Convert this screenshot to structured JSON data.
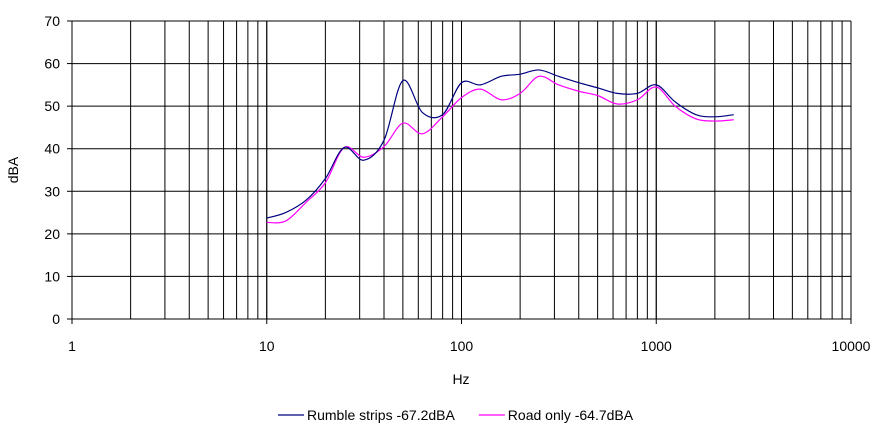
{
  "chart_data": {
    "type": "line",
    "xlabel": "Hz",
    "ylabel": "dBA",
    "x_scale": "log",
    "xlim": [
      1,
      10000
    ],
    "ylim": [
      0,
      70
    ],
    "x_ticks": [
      1,
      10,
      100,
      1000,
      10000
    ],
    "x_tick_labels": [
      "1",
      "10",
      "100",
      "1000",
      "10000"
    ],
    "y_ticks": [
      0,
      10,
      20,
      30,
      40,
      50,
      60,
      70
    ],
    "y_tick_labels": [
      "0",
      "10",
      "20",
      "30",
      "40",
      "50",
      "60",
      "70"
    ],
    "grid": true,
    "legend_position": "bottom-center",
    "series": [
      {
        "name": "Rumble strips -67.2dBA",
        "color": "#000080",
        "x": [
          10,
          12.5,
          16,
          20,
          25,
          31.5,
          40,
          50,
          63,
          80,
          100,
          125,
          160,
          200,
          250,
          315,
          400,
          500,
          630,
          800,
          1000,
          1250,
          1600,
          2000,
          2500
        ],
        "y": [
          23.7,
          25,
          28,
          33,
          40.3,
          37.3,
          42,
          56,
          48.5,
          48,
          55.5,
          55,
          57,
          57.5,
          58.5,
          57,
          55.5,
          54.3,
          53,
          53,
          55,
          51,
          48,
          47.5,
          48
        ]
      },
      {
        "name": "Road only -64.7dBA",
        "color": "#FF00FF",
        "x": [
          10,
          12.5,
          16,
          20,
          25,
          31.5,
          40,
          50,
          63,
          80,
          100,
          125,
          160,
          200,
          250,
          315,
          400,
          500,
          630,
          800,
          1000,
          1250,
          1600,
          2000,
          2500
        ],
        "y": [
          22.7,
          23,
          27.5,
          32,
          40.3,
          38,
          40.5,
          46,
          43.5,
          47.5,
          52,
          54,
          51.5,
          53,
          57,
          55,
          53.5,
          52.5,
          50.5,
          51.5,
          54.5,
          50,
          47,
          46.5,
          46.8
        ]
      }
    ]
  }
}
